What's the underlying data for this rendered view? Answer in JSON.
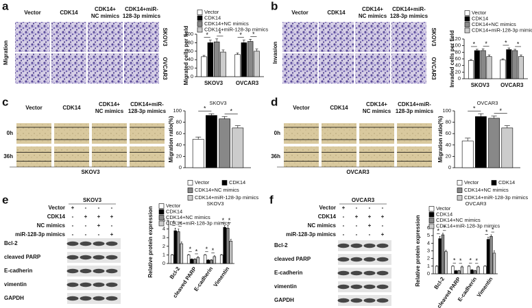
{
  "panels": [
    {
      "label": "a",
      "side_label": "Migration",
      "columns": [
        [
          "Vector"
        ],
        [
          "CDK14"
        ],
        [
          "CDK14+",
          "NC mimics"
        ],
        [
          "CDK14+miR-",
          "128-3p mimics"
        ]
      ],
      "rows": [
        "SKOV3",
        "OVCAR3"
      ]
    },
    {
      "label": "b",
      "side_label": "Invasion",
      "columns": [
        [
          "Vector"
        ],
        [
          "CDK14"
        ],
        [
          "CDK14+",
          "NC mimics"
        ],
        [
          "CDK14+miR-",
          "128-3p mimics"
        ]
      ],
      "rows": [
        "SKOV3",
        "OVCAR3"
      ]
    },
    {
      "label": "c",
      "columns": [
        [
          "Vector"
        ],
        [
          "CDK14"
        ],
        [
          "CDK14+",
          "NC mimics"
        ],
        [
          "CDK14+miR-",
          "128-3p mimics"
        ]
      ],
      "rows": [
        "0h",
        "36h"
      ],
      "caption": "SKOV3"
    },
    {
      "label": "d",
      "columns": [
        [
          "Vector"
        ],
        [
          "CDK14"
        ],
        [
          "CDK14+",
          "NC mimics"
        ],
        [
          "CDK14+miR-",
          "128-3p mimics"
        ]
      ],
      "rows": [
        "0h",
        "36h"
      ],
      "caption": "OVCAR3"
    },
    {
      "label": "e",
      "cell_line": "SKOV3",
      "treatments": [
        {
          "name": "Vector",
          "signs": [
            "+",
            "-",
            "-",
            "-"
          ]
        },
        {
          "name": "CDK14",
          "signs": [
            "-",
            "+",
            "+",
            "+"
          ]
        },
        {
          "name": "NC mimics",
          "signs": [
            "-",
            "-",
            "+",
            "-"
          ]
        },
        {
          "name": "miR-128-3p mimics",
          "signs": [
            "-",
            "-",
            "-",
            "+"
          ]
        }
      ],
      "proteins": [
        "Bcl-2",
        "cleaved PARP",
        "E-cadherin",
        "vimentin",
        "GAPDH"
      ]
    },
    {
      "label": "f",
      "cell_line": "OVCAR3",
      "treatments": [
        {
          "name": "Vector",
          "signs": [
            "+",
            "-",
            "-",
            "-"
          ]
        },
        {
          "name": "CDK14",
          "signs": [
            "-",
            "+",
            "+",
            "+"
          ]
        },
        {
          "name": "NC mimics",
          "signs": [
            "-",
            "-",
            "+",
            "-"
          ]
        },
        {
          "name": "miR-128-3p mimics",
          "signs": [
            "-",
            "-",
            "-",
            "+"
          ]
        }
      ],
      "proteins": [
        "Bcl-2",
        "cleaved PARP",
        "E-cadherin",
        "vimentin",
        "GAPDH"
      ]
    }
  ],
  "chart_data": [
    {
      "type": "bar",
      "ylabel": "Migrated cells per field",
      "categories": [
        "SKOV3",
        "OVCAR3"
      ],
      "ylim": [
        0,
        100
      ],
      "yticks": [
        0,
        20,
        40,
        60,
        80,
        100
      ],
      "legend": "top",
      "series": [
        {
          "name": "Vector",
          "color": "#ffffff",
          "values": [
            47,
            52
          ],
          "errors": [
            3,
            4
          ]
        },
        {
          "name": "CDK14",
          "color": "#000000",
          "values": [
            80,
            80
          ],
          "errors": [
            6,
            6
          ]
        },
        {
          "name": "CDK14+NC mimics",
          "color": "#888888",
          "values": [
            82,
            83
          ],
          "errors": [
            7,
            5
          ]
        },
        {
          "name": "CDK14+miR-128-3p mimics",
          "color": "#cccccc",
          "values": [
            58,
            60
          ],
          "errors": [
            5,
            5
          ]
        }
      ],
      "significance": [
        {
          "label": "*",
          "category": "SKOV3",
          "between": [
            "Vector",
            "CDK14"
          ]
        },
        {
          "label": "*",
          "category": "SKOV3",
          "between": [
            "CDK14+NC mimics",
            "CDK14+miR-128-3p mimics"
          ]
        },
        {
          "label": "*",
          "category": "OVCAR3",
          "between": [
            "Vector",
            "CDK14"
          ]
        },
        {
          "label": "*",
          "category": "OVCAR3",
          "between": [
            "CDK14+NC mimics",
            "CDK14+miR-128-3p mimics"
          ]
        }
      ]
    },
    {
      "type": "bar",
      "ylabel": "Invaded cells per field",
      "categories": [
        "SKOV3",
        "OVCAR3"
      ],
      "ylim": [
        0,
        120
      ],
      "yticks": [
        0,
        20,
        40,
        60,
        80,
        100,
        120
      ],
      "legend": "top",
      "series": [
        {
          "name": "Vector",
          "color": "#ffffff",
          "values": [
            55,
            57
          ],
          "errors": [
            3,
            3
          ]
        },
        {
          "name": "CDK14",
          "color": "#000000",
          "values": [
            85,
            88
          ],
          "errors": [
            4,
            5
          ]
        },
        {
          "name": "CDK14+NC mimics",
          "color": "#888888",
          "values": [
            85,
            85
          ],
          "errors": [
            5,
            4
          ]
        },
        {
          "name": "CDK14+miR-128-3p mimics",
          "color": "#cccccc",
          "values": [
            67,
            67
          ],
          "errors": [
            5,
            5
          ]
        }
      ],
      "significance": [
        {
          "label": "*",
          "category": "SKOV3",
          "between": [
            "Vector",
            "CDK14"
          ]
        },
        {
          "label": "*",
          "category": "SKOV3",
          "between": [
            "CDK14+NC mimics",
            "CDK14+miR-128-3p mimics"
          ]
        },
        {
          "label": "*",
          "category": "OVCAR3",
          "between": [
            "Vector",
            "CDK14"
          ]
        },
        {
          "label": "*",
          "category": "OVCAR3",
          "between": [
            "CDK14+NC mimics",
            "CDK14+miR-128-3p mimics"
          ]
        }
      ]
    },
    {
      "type": "bar",
      "title": "SKOV3",
      "ylabel": "Migration ratio(%)",
      "categories": [
        null
      ],
      "ylim": [
        0,
        100
      ],
      "yticks": [
        0,
        20,
        40,
        60,
        80,
        100
      ],
      "legend": "bottom",
      "series": [
        {
          "name": "Vector",
          "color": "#ffffff",
          "values": [
            50
          ],
          "errors": [
            4
          ]
        },
        {
          "name": "CDK14",
          "color": "#000000",
          "values": [
            92
          ],
          "errors": [
            3
          ]
        },
        {
          "name": "CDK14+NC mimics",
          "color": "#888888",
          "values": [
            86
          ],
          "errors": [
            4
          ]
        },
        {
          "name": "CDK14+miR-128-3p mimics",
          "color": "#cccccc",
          "values": [
            70
          ],
          "errors": [
            4
          ]
        }
      ],
      "significance": [
        {
          "label": "*",
          "category": null,
          "between": [
            "Vector",
            "CDK14"
          ]
        },
        {
          "label": "*",
          "category": null,
          "between": [
            "CDK14+NC mimics",
            "CDK14+miR-128-3p mimics"
          ]
        }
      ]
    },
    {
      "type": "bar",
      "title": "OVCAR3",
      "ylabel": "Migration ratio(%)",
      "categories": [
        null
      ],
      "ylim": [
        0,
        100
      ],
      "yticks": [
        0,
        20,
        40,
        60,
        80,
        100
      ],
      "legend": "bottom",
      "series": [
        {
          "name": "Vector",
          "color": "#ffffff",
          "values": [
            47
          ],
          "errors": [
            5
          ]
        },
        {
          "name": "CDK14",
          "color": "#000000",
          "values": [
            90
          ],
          "errors": [
            5
          ]
        },
        {
          "name": "CDK14+NC mimics",
          "color": "#888888",
          "values": [
            87
          ],
          "errors": [
            4
          ]
        },
        {
          "name": "CDK14+miR-128-3p mimics",
          "color": "#cccccc",
          "values": [
            70
          ],
          "errors": [
            4
          ]
        }
      ],
      "significance": [
        {
          "label": "*",
          "category": null,
          "between": [
            "Vector",
            "CDK14"
          ]
        },
        {
          "label": "*",
          "category": null,
          "between": [
            "CDK14+NC mimics",
            "CDK14+miR-128-3p mimics"
          ]
        }
      ]
    },
    {
      "type": "bar",
      "title": "SKOV3",
      "ylabel": "Relative protein expression",
      "categories": [
        "Bcl-2",
        "cleaved PARP",
        "E-cadherin",
        "Vimentin"
      ],
      "ylim": [
        0,
        5
      ],
      "yticks": [
        0,
        1,
        2,
        3,
        4,
        5
      ],
      "legend": "top",
      "series": [
        {
          "name": "Vector",
          "color": "#ffffff",
          "values": [
            1,
            1,
            1,
            1
          ],
          "errors": [
            0.05,
            0.05,
            0.05,
            0.05
          ]
        },
        {
          "name": "CDK14",
          "color": "#000000",
          "values": [
            3.8,
            0.5,
            0.4,
            4.2
          ],
          "errors": [
            0.3,
            0.05,
            0.05,
            0.2
          ]
        },
        {
          "name": "CDK14+NC mimics",
          "color": "#888888",
          "values": [
            3.7,
            0.5,
            0.4,
            4.1
          ],
          "errors": [
            0.3,
            0.05,
            0.05,
            0.3
          ]
        },
        {
          "name": "CDK14+miR-128-3p mimics",
          "color": "#cccccc",
          "values": [
            2.3,
            0.7,
            0.8,
            2.6
          ],
          "errors": [
            0.2,
            0.1,
            0.1,
            0.2
          ]
        }
      ],
      "significance": [
        {
          "label": "*",
          "category": "Bcl-2",
          "between": [
            "Vector",
            "CDK14"
          ]
        },
        {
          "label": "*",
          "category": "Bcl-2",
          "between": [
            "CDK14+NC mimics",
            "CDK14+miR-128-3p mimics"
          ]
        },
        {
          "label": "*",
          "category": "cleaved PARP",
          "between": [
            "Vector",
            "CDK14"
          ]
        },
        {
          "label": "*",
          "category": "cleaved PARP",
          "between": [
            "CDK14+NC mimics",
            "CDK14+miR-128-3p mimics"
          ]
        },
        {
          "label": "*",
          "category": "E-cadherin",
          "between": [
            "Vector",
            "CDK14"
          ]
        },
        {
          "label": "*",
          "category": "E-cadherin",
          "between": [
            "CDK14+NC mimics",
            "CDK14+miR-128-3p mimics"
          ]
        },
        {
          "label": "*",
          "category": "Vimentin",
          "between": [
            "Vector",
            "CDK14"
          ]
        },
        {
          "label": "*",
          "category": "Vimentin",
          "between": [
            "CDK14+NC mimics",
            "CDK14+miR-128-3p mimics"
          ]
        }
      ]
    },
    {
      "type": "bar",
      "title": "OVCAR3",
      "ylabel": "Relative protein expression",
      "categories": [
        "Bcl-2",
        "cleaved PARP",
        "E-cadherin",
        "Vimentin"
      ],
      "ylim": [
        0,
        6
      ],
      "yticks": [
        0,
        1,
        2,
        3,
        4,
        5,
        6
      ],
      "legend": "top",
      "series": [
        {
          "name": "Vector",
          "color": "#ffffff",
          "values": [
            1,
            1,
            1,
            1
          ],
          "errors": [
            0.05,
            0.05,
            0.05,
            0.05
          ]
        },
        {
          "name": "CDK14",
          "color": "#000000",
          "values": [
            4.6,
            0.4,
            0.5,
            4.5
          ],
          "errors": [
            0.3,
            0.05,
            0.05,
            0.3
          ]
        },
        {
          "name": "CDK14+NC mimics",
          "color": "#888888",
          "values": [
            5.1,
            0.4,
            0.4,
            4.9
          ],
          "errors": [
            0.2,
            0.05,
            0.05,
            0.2
          ]
        },
        {
          "name": "CDK14+miR-128-3p mimics",
          "color": "#cccccc",
          "values": [
            2.9,
            0.9,
            0.9,
            2.7
          ],
          "errors": [
            0.2,
            0.1,
            0.1,
            0.3
          ]
        }
      ],
      "significance": [
        {
          "label": "*",
          "category": "Bcl-2",
          "between": [
            "Vector",
            "CDK14"
          ]
        },
        {
          "label": "*",
          "category": "Bcl-2",
          "between": [
            "CDK14+NC mimics",
            "CDK14+miR-128-3p mimics"
          ]
        },
        {
          "label": "*",
          "category": "cleaved PARP",
          "between": [
            "Vector",
            "CDK14"
          ]
        },
        {
          "label": "*",
          "category": "cleaved PARP",
          "between": [
            "CDK14+NC mimics",
            "CDK14+miR-128-3p mimics"
          ]
        },
        {
          "label": "*",
          "category": "E-cadherin",
          "between": [
            "Vector",
            "CDK14"
          ]
        },
        {
          "label": "*",
          "category": "E-cadherin",
          "between": [
            "CDK14+NC mimics",
            "CDK14+miR-128-3p mimics"
          ]
        },
        {
          "label": "*",
          "category": "Vimentin",
          "between": [
            "Vector",
            "CDK14"
          ]
        },
        {
          "label": "*",
          "category": "Vimentin",
          "between": [
            "CDK14+NC mimics",
            "CDK14+miR-128-3p mimics"
          ]
        }
      ]
    }
  ]
}
